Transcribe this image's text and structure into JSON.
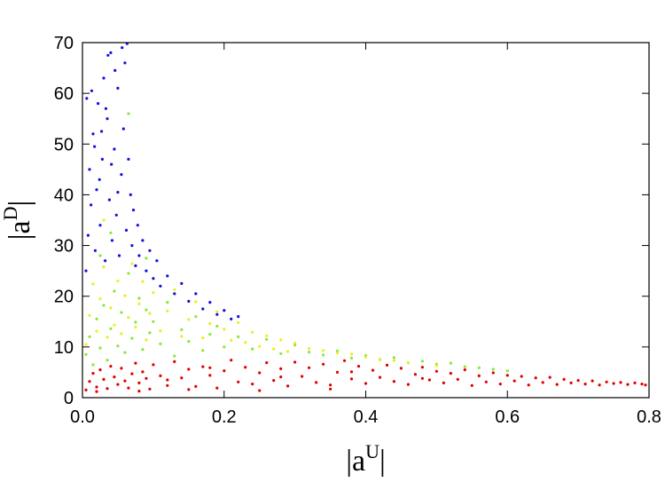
{
  "chart_data": {
    "type": "scatter",
    "title": "",
    "xlabel": {
      "base": "|a",
      "sup": "U",
      "close": "|"
    },
    "ylabel": {
      "base": "|a",
      "sup": "D",
      "close": "|"
    },
    "xlim": [
      0,
      0.8
    ],
    "ylim": [
      0,
      70
    ],
    "x_ticks": [
      0.0,
      0.2,
      0.4,
      0.6,
      0.8
    ],
    "x_tick_labels": [
      "0.0",
      "0.2",
      "0.4",
      "0.6",
      "0.8"
    ],
    "y_ticks": [
      0,
      10,
      20,
      30,
      40,
      50,
      60,
      70
    ],
    "y_tick_labels": [
      "0",
      "10",
      "20",
      "30",
      "40",
      "50",
      "60",
      "70"
    ],
    "grid": false,
    "legend": "none",
    "series": [
      {
        "color": "#e00000",
        "values": [
          [
            0.005,
            1.5
          ],
          [
            0.01,
            3.2
          ],
          [
            0.015,
            4.8
          ],
          [
            0.02,
            2.1
          ],
          [
            0.025,
            5.5
          ],
          [
            0.03,
            3.6
          ],
          [
            0.035,
            1.8
          ],
          [
            0.04,
            6.2
          ],
          [
            0.045,
            4.1
          ],
          [
            0.05,
            2.6
          ],
          [
            0.055,
            5.8
          ],
          [
            0.06,
            3.3
          ],
          [
            0.065,
            1.9
          ],
          [
            0.07,
            4.7
          ],
          [
            0.075,
            6.8
          ],
          [
            0.08,
            2.9
          ],
          [
            0.085,
            5.1
          ],
          [
            0.09,
            3.8
          ],
          [
            0.095,
            1.7
          ],
          [
            0.1,
            6.5
          ],
          [
            0.11,
            4.3
          ],
          [
            0.12,
            2.4
          ],
          [
            0.13,
            7.1
          ],
          [
            0.14,
            3.9
          ],
          [
            0.15,
            5.6
          ],
          [
            0.16,
            2.2
          ],
          [
            0.17,
            6.1
          ],
          [
            0.18,
            4.4
          ],
          [
            0.19,
            1.9
          ],
          [
            0.2,
            5.3
          ],
          [
            0.21,
            7.4
          ],
          [
            0.22,
            3.1
          ],
          [
            0.23,
            6.0
          ],
          [
            0.24,
            2.7
          ],
          [
            0.25,
            4.9
          ],
          [
            0.26,
            6.9
          ],
          [
            0.27,
            3.4
          ],
          [
            0.28,
            5.7
          ],
          [
            0.29,
            2.3
          ],
          [
            0.3,
            7.0
          ],
          [
            0.31,
            4.2
          ],
          [
            0.32,
            5.9
          ],
          [
            0.33,
            3.0
          ],
          [
            0.34,
            6.6
          ],
          [
            0.35,
            2.5
          ],
          [
            0.36,
            5.0
          ],
          [
            0.37,
            7.3
          ],
          [
            0.38,
            3.7
          ],
          [
            0.39,
            6.2
          ],
          [
            0.4,
            2.8
          ],
          [
            0.41,
            5.4
          ],
          [
            0.42,
            4.0
          ],
          [
            0.43,
            6.4
          ],
          [
            0.44,
            3.2
          ],
          [
            0.45,
            5.8
          ],
          [
            0.46,
            2.6
          ],
          [
            0.47,
            4.6
          ],
          [
            0.48,
            6.0
          ],
          [
            0.49,
            3.5
          ],
          [
            0.5,
            5.2
          ],
          [
            0.51,
            2.9
          ],
          [
            0.52,
            4.8
          ],
          [
            0.53,
            3.6
          ],
          [
            0.54,
            5.5
          ],
          [
            0.55,
            2.4
          ],
          [
            0.56,
            4.3
          ],
          [
            0.57,
            3.1
          ],
          [
            0.58,
            4.9
          ],
          [
            0.59,
            2.7
          ],
          [
            0.6,
            4.4
          ],
          [
            0.61,
            3.3
          ],
          [
            0.62,
            4.2
          ],
          [
            0.63,
            2.5
          ],
          [
            0.64,
            3.9
          ],
          [
            0.65,
            3.0
          ],
          [
            0.66,
            4.0
          ],
          [
            0.67,
            2.6
          ],
          [
            0.68,
            3.6
          ],
          [
            0.69,
            2.9
          ],
          [
            0.7,
            3.4
          ],
          [
            0.71,
            2.7
          ],
          [
            0.72,
            3.3
          ],
          [
            0.73,
            2.5
          ],
          [
            0.74,
            3.1
          ],
          [
            0.75,
            2.8
          ],
          [
            0.76,
            3.0
          ],
          [
            0.77,
            2.6
          ],
          [
            0.78,
            2.9
          ],
          [
            0.79,
            2.7
          ],
          [
            0.795,
            2.5
          ],
          [
            0.02,
            1.2
          ],
          [
            0.08,
            1.3
          ],
          [
            0.15,
            1.6
          ],
          [
            0.25,
            1.4
          ],
          [
            0.35,
            1.7
          ],
          [
            0.12,
            3.5
          ],
          [
            0.18,
            5.9
          ],
          [
            0.28,
            4.1
          ],
          [
            0.38,
            5.1
          ],
          [
            0.48,
            3.8
          ]
        ]
      },
      {
        "color": "#88e83a",
        "values": [
          [
            0.005,
            8.5
          ],
          [
            0.01,
            12.0
          ],
          [
            0.015,
            6.5
          ],
          [
            0.02,
            15.5
          ],
          [
            0.025,
            9.8
          ],
          [
            0.03,
            18.2
          ],
          [
            0.035,
            7.4
          ],
          [
            0.04,
            13.6
          ],
          [
            0.045,
            21.0
          ],
          [
            0.05,
            10.2
          ],
          [
            0.055,
            16.8
          ],
          [
            0.06,
            8.9
          ],
          [
            0.065,
            24.5
          ],
          [
            0.07,
            11.7
          ],
          [
            0.075,
            14.9
          ],
          [
            0.08,
            19.6
          ],
          [
            0.085,
            9.5
          ],
          [
            0.09,
            17.3
          ],
          [
            0.095,
            12.8
          ],
          [
            0.1,
            15.0
          ],
          [
            0.11,
            10.6
          ],
          [
            0.12,
            18.8
          ],
          [
            0.13,
            8.2
          ],
          [
            0.14,
            13.4
          ],
          [
            0.15,
            11.1
          ],
          [
            0.16,
            16.0
          ],
          [
            0.17,
            9.3
          ],
          [
            0.18,
            12.5
          ],
          [
            0.19,
            14.1
          ],
          [
            0.2,
            10.0
          ],
          [
            0.22,
            12.0
          ],
          [
            0.24,
            9.6
          ],
          [
            0.26,
            11.5
          ],
          [
            0.28,
            8.7
          ],
          [
            0.3,
            10.4
          ],
          [
            0.32,
            9.0
          ],
          [
            0.34,
            8.4
          ],
          [
            0.36,
            9.2
          ],
          [
            0.38,
            7.8
          ],
          [
            0.4,
            8.3
          ],
          [
            0.42,
            7.5
          ],
          [
            0.44,
            7.9
          ],
          [
            0.46,
            6.9
          ],
          [
            0.48,
            7.2
          ],
          [
            0.5,
            6.6
          ],
          [
            0.52,
            6.8
          ],
          [
            0.54,
            6.1
          ],
          [
            0.56,
            5.9
          ],
          [
            0.58,
            5.6
          ],
          [
            0.6,
            5.3
          ],
          [
            0.065,
            56.0
          ],
          [
            0.04,
            32.5
          ],
          [
            0.025,
            28.0
          ],
          [
            0.09,
            27.5
          ],
          [
            0.11,
            22.0
          ]
        ]
      },
      {
        "color": "#e8f020",
        "values": [
          [
            0.005,
            10.5
          ],
          [
            0.01,
            16.2
          ],
          [
            0.015,
            22.4
          ],
          [
            0.02,
            13.1
          ],
          [
            0.025,
            19.5
          ],
          [
            0.03,
            25.8
          ],
          [
            0.035,
            11.9
          ],
          [
            0.04,
            17.7
          ],
          [
            0.045,
            14.3
          ],
          [
            0.05,
            23.0
          ],
          [
            0.055,
            12.6
          ],
          [
            0.06,
            20.1
          ],
          [
            0.065,
            15.8
          ],
          [
            0.07,
            26.4
          ],
          [
            0.075,
            13.9
          ],
          [
            0.08,
            18.5
          ],
          [
            0.085,
            22.9
          ],
          [
            0.09,
            11.4
          ],
          [
            0.095,
            16.6
          ],
          [
            0.1,
            20.7
          ],
          [
            0.11,
            13.2
          ],
          [
            0.12,
            17.1
          ],
          [
            0.13,
            21.3
          ],
          [
            0.14,
            12.1
          ],
          [
            0.15,
            15.4
          ],
          [
            0.16,
            18.9
          ],
          [
            0.17,
            11.8
          ],
          [
            0.18,
            14.6
          ],
          [
            0.19,
            16.9
          ],
          [
            0.2,
            13.5
          ],
          [
            0.21,
            11.3
          ],
          [
            0.22,
            14.8
          ],
          [
            0.23,
            10.9
          ],
          [
            0.24,
            12.9
          ],
          [
            0.25,
            10.1
          ],
          [
            0.26,
            12.2
          ],
          [
            0.27,
            9.6
          ],
          [
            0.28,
            11.4
          ],
          [
            0.29,
            9.1
          ],
          [
            0.3,
            10.8
          ],
          [
            0.32,
            9.7
          ],
          [
            0.34,
            9.3
          ],
          [
            0.36,
            8.8
          ],
          [
            0.38,
            8.6
          ],
          [
            0.4,
            8.0
          ],
          [
            0.42,
            7.6
          ],
          [
            0.44,
            7.3
          ],
          [
            0.46,
            6.9
          ],
          [
            0.5,
            6.3
          ],
          [
            0.03,
            35.0
          ]
        ]
      },
      {
        "color": "#1010e0",
        "values": [
          [
            0.005,
            25.0
          ],
          [
            0.008,
            32.0
          ],
          [
            0.01,
            45.0
          ],
          [
            0.012,
            38.0
          ],
          [
            0.015,
            52.0
          ],
          [
            0.018,
            29.0
          ],
          [
            0.02,
            41.0
          ],
          [
            0.022,
            58.0
          ],
          [
            0.025,
            34.0
          ],
          [
            0.028,
            47.0
          ],
          [
            0.03,
            63.0
          ],
          [
            0.032,
            27.0
          ],
          [
            0.035,
            55.0
          ],
          [
            0.038,
            39.0
          ],
          [
            0.04,
            68.0
          ],
          [
            0.042,
            31.0
          ],
          [
            0.045,
            49.0
          ],
          [
            0.048,
            36.0
          ],
          [
            0.05,
            61.0
          ],
          [
            0.052,
            28.0
          ],
          [
            0.055,
            44.0
          ],
          [
            0.058,
            53.0
          ],
          [
            0.06,
            66.0
          ],
          [
            0.062,
            33.0
          ],
          [
            0.065,
            47.0
          ],
          [
            0.068,
            40.0
          ],
          [
            0.07,
            30.0
          ],
          [
            0.072,
            37.0
          ],
          [
            0.075,
            26.0
          ],
          [
            0.078,
            34.0
          ],
          [
            0.08,
            28.0
          ],
          [
            0.085,
            31.0
          ],
          [
            0.09,
            25.0
          ],
          [
            0.095,
            29.0
          ],
          [
            0.1,
            23.5
          ],
          [
            0.105,
            27.0
          ],
          [
            0.11,
            22.0
          ],
          [
            0.12,
            24.0
          ],
          [
            0.13,
            20.5
          ],
          [
            0.14,
            22.5
          ],
          [
            0.15,
            19.0
          ],
          [
            0.16,
            20.5
          ],
          [
            0.17,
            17.5
          ],
          [
            0.18,
            18.8
          ],
          [
            0.19,
            16.4
          ],
          [
            0.2,
            17.2
          ],
          [
            0.21,
            15.5
          ],
          [
            0.22,
            16.0
          ],
          [
            0.006,
            59.0
          ],
          [
            0.013,
            60.5
          ],
          [
            0.017,
            49.5
          ],
          [
            0.024,
            43.0
          ],
          [
            0.033,
            57.0
          ],
          [
            0.046,
            64.5
          ],
          [
            0.056,
            69.0
          ],
          [
            0.063,
            69.8
          ],
          [
            0.036,
            67.5
          ],
          [
            0.027,
            52.5
          ],
          [
            0.041,
            46.0
          ],
          [
            0.05,
            40.5
          ]
        ]
      }
    ]
  }
}
